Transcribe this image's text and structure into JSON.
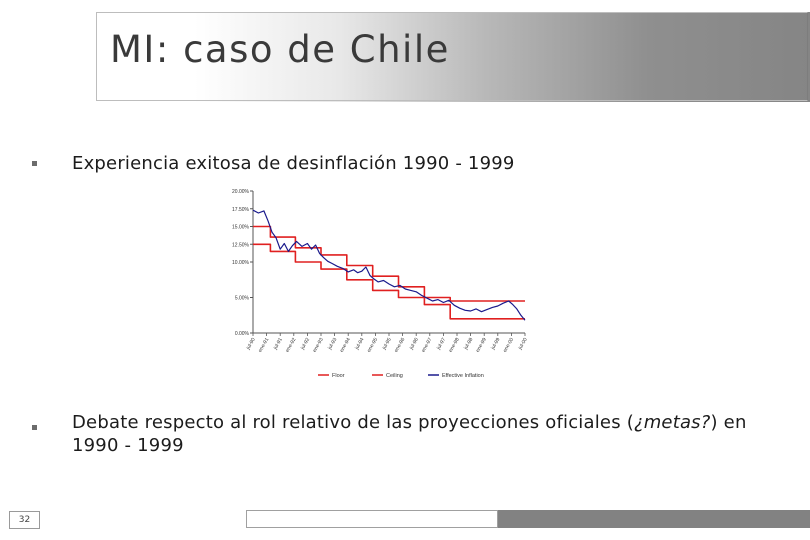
{
  "slide": {
    "title": "MI: caso de Chile",
    "bullets": [
      {
        "text_before": "Experiencia exitosa de desinflación 1990 - 1999"
      },
      {
        "text_before": "Debate respecto al rol relativo de las proyecciones oficiales (",
        "italic": "¿metas?",
        "text_after": ") en 1990 - 1999"
      }
    ],
    "slide_number": "32"
  },
  "colors": {
    "ceiling_floor": "#e02020",
    "inflation": "#1a1a8c",
    "axis": "#555555"
  },
  "chart_data": {
    "type": "line",
    "y_ticks": [
      "20.00%",
      "17.50%",
      "15.00%",
      "12.50%",
      "10.00%",
      "5.00%",
      "0.00%"
    ],
    "y_tick_values": [
      20,
      17.5,
      15,
      12.5,
      10,
      5,
      0
    ],
    "ylim": [
      0,
      20
    ],
    "x_labels": [
      "jul-90",
      "ene-91",
      "jul-91",
      "ene-92",
      "jul-92",
      "ene-93",
      "jul-93",
      "ene-94",
      "jul-94",
      "ene-95",
      "jul-95",
      "ene-96",
      "jul-96",
      "ene-97",
      "jul-97",
      "ene-98",
      "jul-98",
      "ene-99",
      "jul-99",
      "ene-00",
      "jul-00"
    ],
    "legend": [
      "Floor",
      "Ceiling",
      "Effective Inflation"
    ],
    "series": [
      {
        "name": "Ceiling",
        "color_key": "ceiling_floor",
        "points": [
          [
            0,
            15
          ],
          [
            0.064,
            15
          ],
          [
            0.064,
            13.5
          ],
          [
            0.156,
            13.5
          ],
          [
            0.156,
            12
          ],
          [
            0.25,
            12
          ],
          [
            0.25,
            11
          ],
          [
            0.345,
            11
          ],
          [
            0.345,
            9.5
          ],
          [
            0.44,
            9.5
          ],
          [
            0.44,
            8
          ],
          [
            0.535,
            8
          ],
          [
            0.535,
            6.5
          ],
          [
            0.63,
            6.5
          ],
          [
            0.63,
            5
          ],
          [
            0.725,
            5
          ],
          [
            0.725,
            4.5
          ],
          [
            1,
            4.5
          ]
        ]
      },
      {
        "name": "Floor",
        "color_key": "ceiling_floor",
        "points": [
          [
            0,
            12.5
          ],
          [
            0.064,
            12.5
          ],
          [
            0.064,
            11.5
          ],
          [
            0.156,
            11.5
          ],
          [
            0.156,
            10
          ],
          [
            0.25,
            10
          ],
          [
            0.25,
            9
          ],
          [
            0.345,
            9
          ],
          [
            0.345,
            7.5
          ],
          [
            0.44,
            7.5
          ],
          [
            0.44,
            6
          ],
          [
            0.535,
            6
          ],
          [
            0.535,
            5
          ],
          [
            0.63,
            5
          ],
          [
            0.63,
            4
          ],
          [
            0.725,
            4
          ],
          [
            0.725,
            2
          ],
          [
            1,
            2
          ]
        ]
      },
      {
        "name": "Effective Inflation",
        "color_key": "inflation",
        "points": [
          [
            0,
            17.3
          ],
          [
            0.02,
            16.9
          ],
          [
            0.04,
            17.2
          ],
          [
            0.055,
            15.8
          ],
          [
            0.07,
            14.2
          ],
          [
            0.085,
            13.4
          ],
          [
            0.1,
            11.8
          ],
          [
            0.115,
            12.6
          ],
          [
            0.13,
            11.5
          ],
          [
            0.145,
            12.3
          ],
          [
            0.16,
            12.9
          ],
          [
            0.18,
            12.2
          ],
          [
            0.2,
            12.6
          ],
          [
            0.215,
            11.8
          ],
          [
            0.23,
            12.4
          ],
          [
            0.245,
            11.2
          ],
          [
            0.26,
            10.6
          ],
          [
            0.275,
            10.1
          ],
          [
            0.29,
            9.8
          ],
          [
            0.31,
            9.4
          ],
          [
            0.33,
            9.1
          ],
          [
            0.35,
            8.6
          ],
          [
            0.37,
            8.9
          ],
          [
            0.385,
            8.5
          ],
          [
            0.4,
            8.7
          ],
          [
            0.415,
            9.3
          ],
          [
            0.43,
            8.1
          ],
          [
            0.445,
            7.6
          ],
          [
            0.46,
            7.2
          ],
          [
            0.48,
            7.4
          ],
          [
            0.5,
            6.9
          ],
          [
            0.52,
            6.5
          ],
          [
            0.54,
            6.7
          ],
          [
            0.56,
            6.2
          ],
          [
            0.58,
            6.0
          ],
          [
            0.6,
            5.8
          ],
          [
            0.62,
            5.3
          ],
          [
            0.64,
            4.9
          ],
          [
            0.66,
            4.5
          ],
          [
            0.68,
            4.7
          ],
          [
            0.7,
            4.3
          ],
          [
            0.72,
            4.6
          ],
          [
            0.74,
            3.9
          ],
          [
            0.76,
            3.5
          ],
          [
            0.78,
            3.2
          ],
          [
            0.8,
            3.1
          ],
          [
            0.82,
            3.4
          ],
          [
            0.84,
            3.0
          ],
          [
            0.86,
            3.3
          ],
          [
            0.88,
            3.6
          ],
          [
            0.9,
            3.8
          ],
          [
            0.92,
            4.2
          ],
          [
            0.94,
            4.5
          ],
          [
            0.955,
            4.0
          ],
          [
            0.97,
            3.4
          ],
          [
            0.985,
            2.5
          ],
          [
            1,
            1.8
          ]
        ]
      }
    ]
  }
}
